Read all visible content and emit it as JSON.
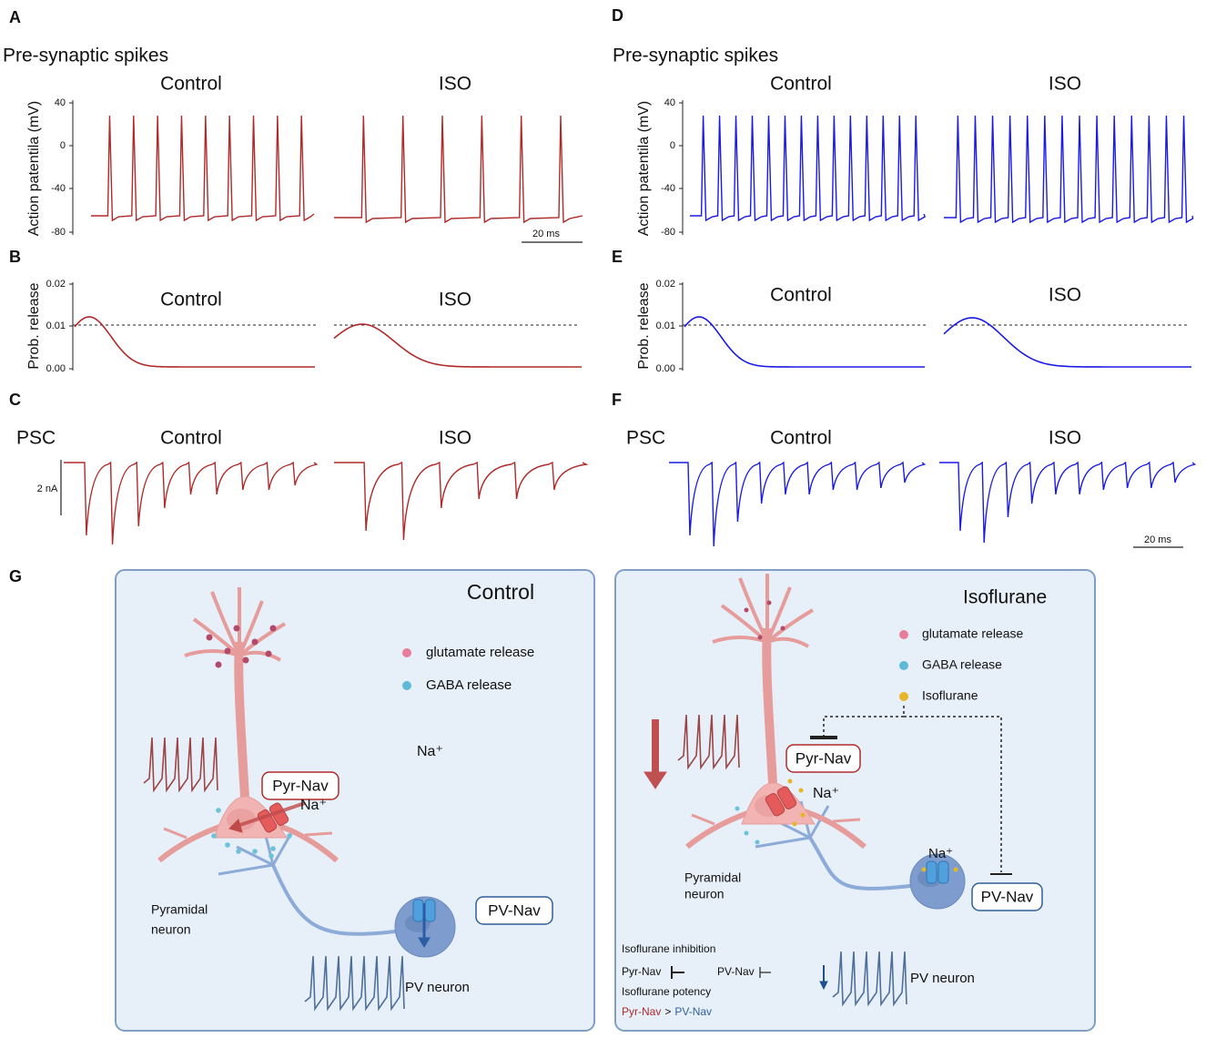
{
  "panel_labels": [
    "A",
    "B",
    "C",
    "D",
    "E",
    "F",
    "G"
  ],
  "traces": {
    "heading": "Pre-synaptic spikes",
    "conditions": [
      "Control",
      "ISO"
    ],
    "spikes_y_label": "Action patentila (mV)",
    "spikes_y_ticks": [
      "40",
      "0",
      "-40",
      "-80"
    ],
    "release_y_label": "Prob. release",
    "release_y_ticks": [
      "0.02",
      "0.01",
      "0.00"
    ],
    "psc_label": "PSC",
    "psc_scale": "2 nA",
    "time_scale": "20 ms"
  },
  "diagram_control": {
    "title": "Control",
    "legend": [
      "glutamate release",
      "GABA release"
    ],
    "pyr_channel": "Pyr-Nav",
    "pv_channel": "PV-Nav",
    "sodium": "Na⁺",
    "pyramidal": [
      "Pyramidal",
      "neuron"
    ],
    "pv_neuron": "PV neuron"
  },
  "diagram_iso": {
    "title": "Isoflurane",
    "legend": [
      "glutamate release",
      "GABA release",
      "Isoflurane"
    ],
    "pyr_channel": "Pyr-Nav",
    "pv_channel": "PV-Nav",
    "sodium": "Na⁺",
    "pyramidal": [
      "Pyramidal",
      "neuron"
    ],
    "pv_neuron": "PV neuron",
    "inhibition_title": "Isoflurane inhibition",
    "potency_title": "Isoflurane potency",
    "potency_relation": ">"
  }
}
